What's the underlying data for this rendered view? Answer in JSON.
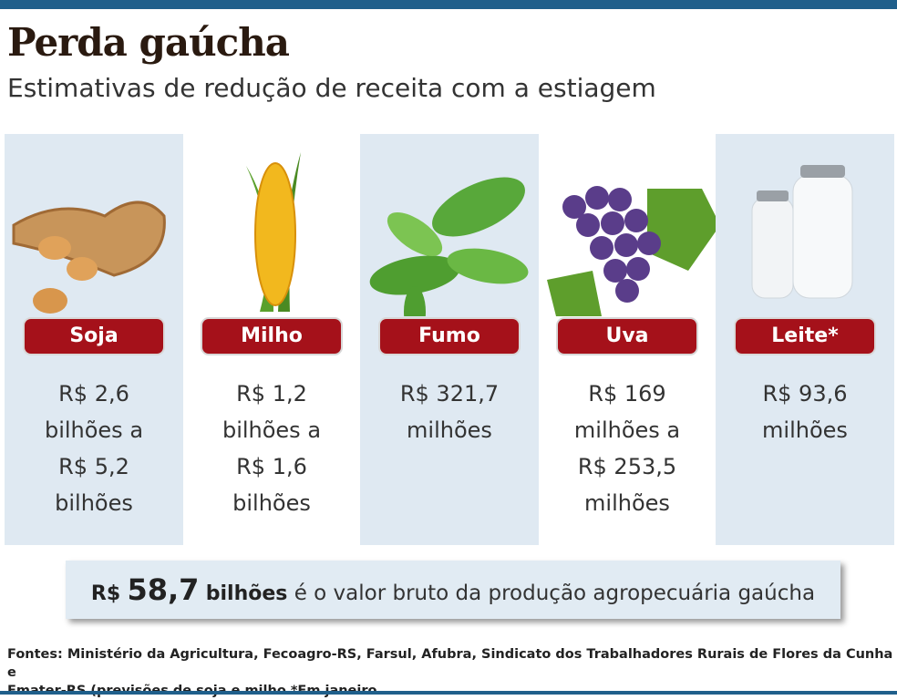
{
  "header": {
    "title": "Perda gaúcha",
    "subtitle": "Estimativas de redução de receita com a estiagem"
  },
  "items": [
    {
      "name": "Soja",
      "estimate": [
        "R$ 2,6",
        "bilhões a",
        "R$ 5,2",
        "bilhões"
      ]
    },
    {
      "name": "Milho",
      "estimate": [
        "R$ 1,2",
        "bilhões a",
        "R$ 1,6",
        "bilhões"
      ]
    },
    {
      "name": "Fumo",
      "estimate": [
        "R$ 321,7",
        "milhões"
      ]
    },
    {
      "name": "Uva",
      "estimate": [
        "R$ 169",
        "milhões a",
        "R$ 253,5",
        "milhões"
      ]
    },
    {
      "name": "Leite*",
      "estimate": [
        "R$ 93,6",
        "milhões"
      ]
    }
  ],
  "highlight": {
    "currency": "R$",
    "value": "58,7",
    "unit": "bilhões",
    "text": "é o valor bruto da produção agropecuária gaúcha"
  },
  "sources": [
    "Fontes: Ministério da Agricultura, Fecoagro-RS, Farsul, Afubra, Sindicato dos Trabalhadores Rurais de Flores da Cunha e",
    "Emater-RS (previsões de soja e milho *Em janeiro"
  ]
}
